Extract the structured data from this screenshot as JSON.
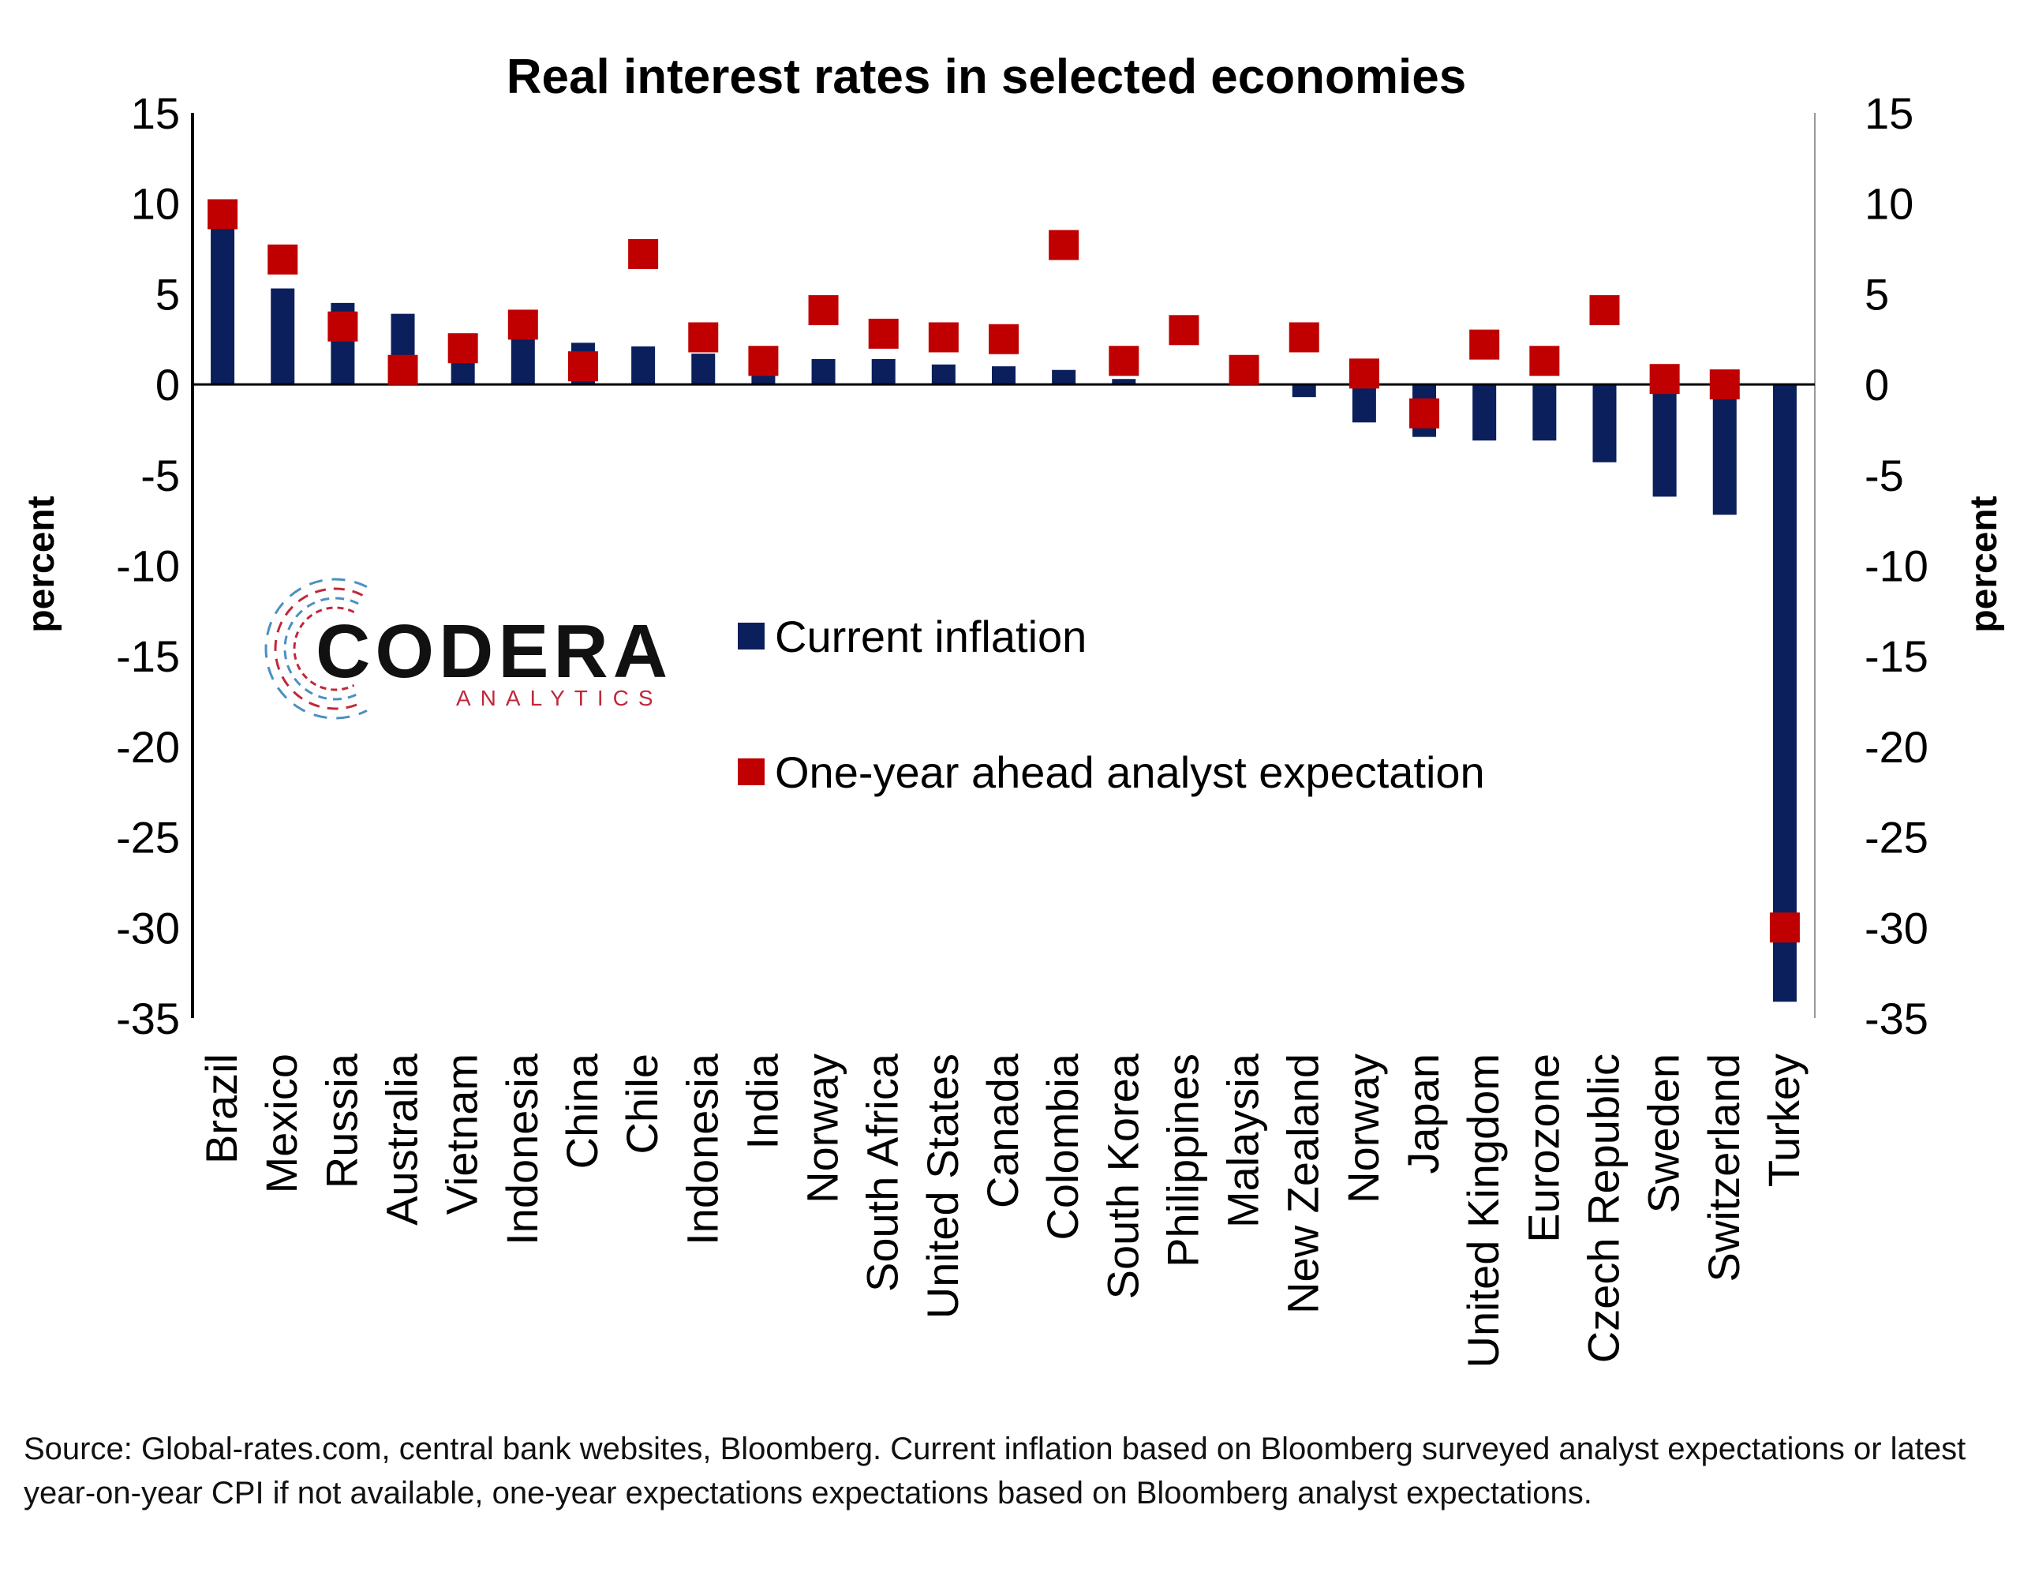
{
  "colors": {
    "current": "#0b1f5c",
    "expectation": "#c00000",
    "axis": "#000000",
    "right_axis": "#999999",
    "logo_red": "#c0283a",
    "logo_blue": "#4a90c2"
  },
  "logo": {
    "name": "CODERA",
    "tagline": "ANALYTICS"
  },
  "source_note": "Source: Global-rates.com, central bank websites, Bloomberg. Current inflation based on Bloomberg surveyed analyst expectations or latest year-on-year CPI if not available, one-year expectations expectations based on Bloomberg analyst expectations.",
  "chart_data": {
    "type": "bar",
    "title": "Real interest rates in selected economies",
    "ylabel": "percent",
    "y2label": "percent",
    "ylim": [
      -35,
      15
    ],
    "yticks": [
      15,
      10,
      5,
      0,
      -5,
      -10,
      -15,
      -20,
      -25,
      -30,
      -35
    ],
    "grid": false,
    "legend_position": "center",
    "categories": [
      "Brazil",
      "Mexico",
      "Russia",
      "Australia",
      "Vietnam",
      "Indonesia",
      "China",
      "Chile",
      "Indonesia",
      "India",
      "Norway",
      "South Africa",
      "United States",
      "Canada",
      "Colombia",
      "South Korea",
      "Philippines",
      "Malaysia",
      "New Zealand",
      "Norway",
      "Japan",
      "United Kingdom",
      "Eurozone",
      "Czech Republic",
      "Sweden",
      "Switzerland",
      "Turkey"
    ],
    "series": [
      {
        "name": "Current inflation",
        "type": "bar",
        "values": [
          8.8,
          5.3,
          4.5,
          3.9,
          1.3,
          2.5,
          2.3,
          2.1,
          1.7,
          0.6,
          1.4,
          1.4,
          1.1,
          1.0,
          0.8,
          0.3,
          0.0,
          0.0,
          -0.7,
          -2.1,
          -2.9,
          -3.1,
          -3.1,
          -4.3,
          -6.2,
          -7.2,
          -34.1
        ]
      },
      {
        "name": "One-year ahead analyst expectation",
        "type": "scatter",
        "values": [
          9.4,
          6.9,
          3.2,
          0.8,
          2.0,
          3.3,
          1.0,
          7.2,
          2.6,
          1.3,
          4.1,
          2.8,
          2.6,
          2.5,
          7.7,
          1.3,
          3.0,
          0.8,
          2.6,
          0.6,
          -1.6,
          2.2,
          1.3,
          4.1,
          0.3,
          0.0,
          -30.0
        ]
      }
    ]
  }
}
